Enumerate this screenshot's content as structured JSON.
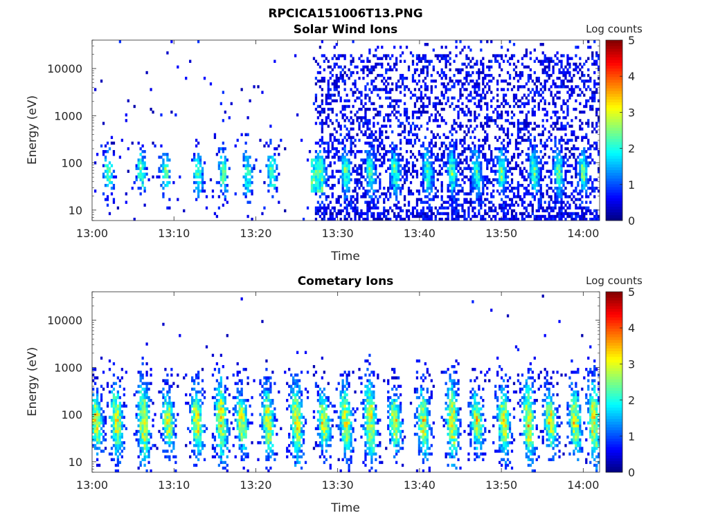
{
  "figure_title": "RPCICA151006T13.PNG",
  "chart_data": [
    {
      "type": "heatmap",
      "title": "Solar Wind Ions",
      "xlabel": "Time",
      "ylabel": "Energy (eV)",
      "x_ticks": [
        "13:00",
        "13:10",
        "13:20",
        "13:30",
        "13:40",
        "13:50",
        "14:00"
      ],
      "x_range": [
        "13:00",
        "14:02"
      ],
      "y_scale": "log",
      "y_ticks": [
        "10",
        "100",
        "1000",
        "10000"
      ],
      "y_range": [
        6,
        40000
      ],
      "colorbar": {
        "label": "Log counts",
        "range": [
          0,
          5
        ],
        "ticks": [
          "0",
          "1",
          "2",
          "3",
          "4",
          "5"
        ],
        "colormap": "jet"
      },
      "features": {
        "pre_1327_activity": "sparse bursts 10–300 eV, log counts mostly 0–1.5",
        "post_1327_activity": "dense background 10–30000 eV, log counts 0–1, periodic bursts near 60 eV up to 2",
        "burst_minutes": [
          2,
          6,
          9,
          13,
          16,
          19,
          22,
          28,
          31,
          34,
          37,
          41,
          44,
          47,
          50,
          54,
          57,
          60
        ]
      }
    },
    {
      "type": "heatmap",
      "title": "Cometary Ions",
      "xlabel": "Time",
      "ylabel": "Energy (eV)",
      "x_ticks": [
        "13:00",
        "13:10",
        "13:20",
        "13:30",
        "13:40",
        "13:50",
        "14:00"
      ],
      "x_range": [
        "13:00",
        "14:02"
      ],
      "y_scale": "log",
      "y_ticks": [
        "10",
        "100",
        "1000",
        "10000"
      ],
      "y_range": [
        6,
        40000
      ],
      "colorbar": {
        "label": "Log counts",
        "range": [
          0,
          5
        ],
        "ticks": [
          "0",
          "1",
          "2",
          "3",
          "4",
          "5"
        ],
        "colormap": "jet"
      },
      "features": {
        "activity": "periodic bursts roughly every 3 minutes spanning 10–1000 eV, peaks near 40–100 eV with log counts up to 3.5",
        "burst_minutes": [
          0.5,
          3,
          6.3,
          9.3,
          12.8,
          15.8,
          18.3,
          21.5,
          25,
          28.3,
          31,
          34,
          37,
          40.5,
          44,
          47,
          50.3,
          53.3,
          56,
          59,
          61.3
        ]
      }
    }
  ]
}
